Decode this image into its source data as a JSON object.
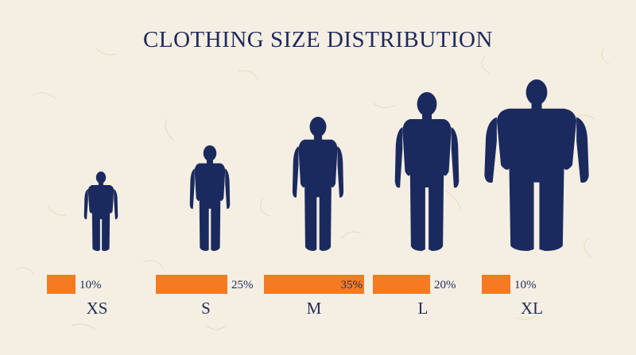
{
  "chart_data": {
    "type": "bar",
    "title": "CLOTHING SIZE DISTRIBUTION",
    "categories": [
      "XS",
      "S",
      "M",
      "L",
      "XL"
    ],
    "values": [
      10,
      25,
      35,
      20,
      10
    ],
    "value_labels": [
      "10%",
      "25%",
      "35%",
      "20%",
      "10%"
    ],
    "unit": "%",
    "xlabel": "",
    "ylabel": "",
    "grid": false,
    "legend": "none",
    "colors": {
      "bar": "#f57a22",
      "bar_track": "#f4efe2",
      "figure": "#1b2a5e",
      "text": "#1f2a5c",
      "background": "#f4efe2"
    },
    "icons": [
      "human-figure-xs-icon",
      "human-figure-s-icon",
      "human-figure-m-icon",
      "human-figure-l-icon",
      "human-figure-xl-icon"
    ]
  }
}
